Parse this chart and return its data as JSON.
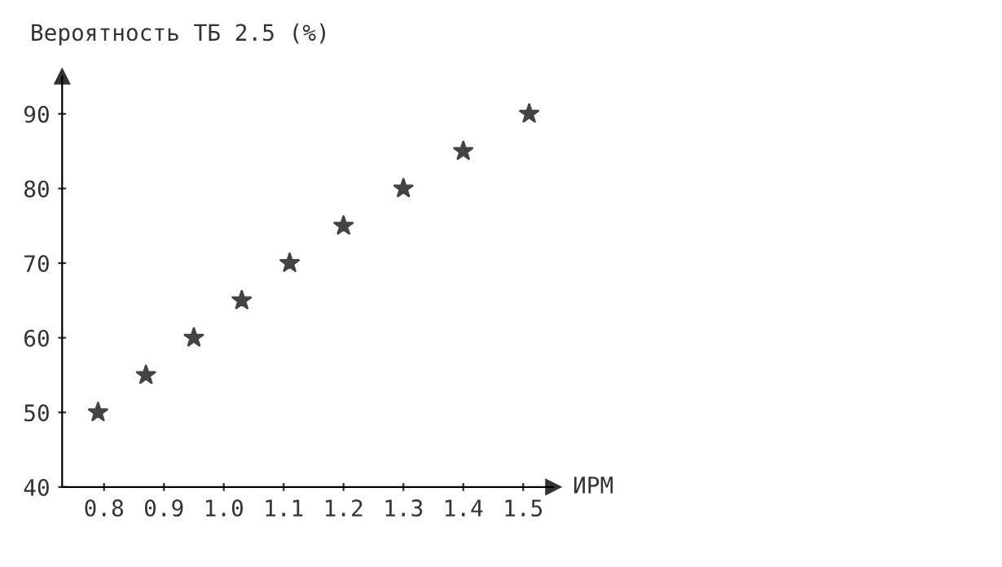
{
  "chart_data": {
    "type": "scatter",
    "ylabel": "Вероятность ТБ 2.5 (%)",
    "xlabel": "ИРМ",
    "x": [
      0.79,
      0.87,
      0.95,
      1.03,
      1.11,
      1.2,
      1.3,
      1.4,
      1.51
    ],
    "series": [
      {
        "color": "#444444",
        "values": [
          50,
          55,
          60,
          65,
          70,
          75,
          80,
          85,
          90
        ]
      }
    ],
    "marker": "star",
    "xlim": [
      0.73,
      1.55
    ],
    "ylim": [
      40,
      95
    ],
    "xticks": [
      0.8,
      0.9,
      {
        "value": 1.0,
        "label": "1.0"
      },
      1.1,
      1.2,
      1.3,
      1.4,
      1.5
    ],
    "yticks": [
      40,
      50,
      60,
      70,
      80,
      90
    ],
    "grid": false,
    "legend": false
  }
}
